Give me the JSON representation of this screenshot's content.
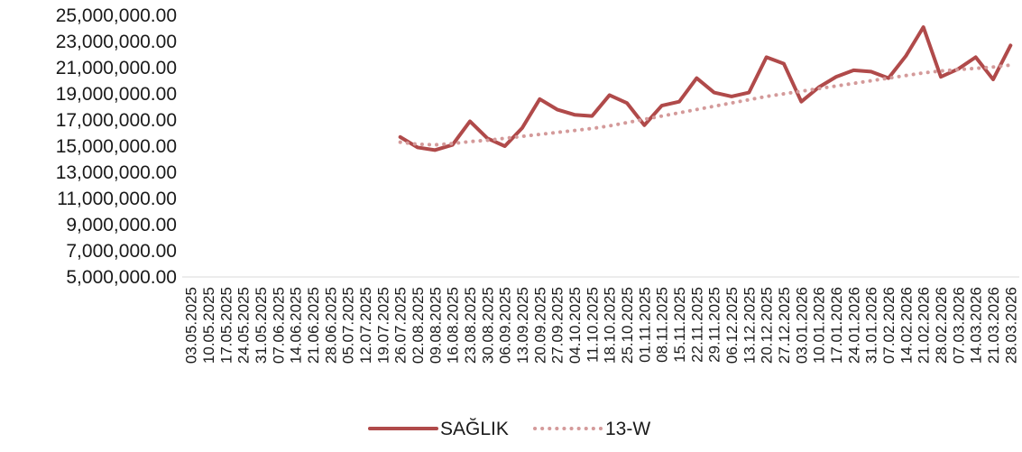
{
  "chart_data": {
    "type": "line",
    "title": "",
    "xlabel": "",
    "ylabel": "",
    "ylim": [
      5000000,
      25000000
    ],
    "yticks": [
      {
        "value": 5000000,
        "label": "5,000,000.00"
      },
      {
        "value": 7000000,
        "label": "7,000,000.00"
      },
      {
        "value": 9000000,
        "label": "9,000,000.00"
      },
      {
        "value": 11000000,
        "label": "11,000,000.00"
      },
      {
        "value": 13000000,
        "label": "13,000,000.00"
      },
      {
        "value": 15000000,
        "label": "15,000,000.00"
      },
      {
        "value": 17000000,
        "label": "17,000,000.00"
      },
      {
        "value": 19000000,
        "label": "19,000,000.00"
      },
      {
        "value": 21000000,
        "label": "21,000,000.00"
      },
      {
        "value": 23000000,
        "label": "23,000,000.00"
      },
      {
        "value": 25000000,
        "label": "25,000,000.00"
      }
    ],
    "grid": false,
    "legend_position": "bottom",
    "categories": [
      "03.05.2025",
      "10.05.2025",
      "17.05.2025",
      "24.05.2025",
      "31.05.2025",
      "07.06.2025",
      "14.06.2025",
      "21.06.2025",
      "28.06.2025",
      "05.07.2025",
      "12.07.2025",
      "19.07.2025",
      "26.07.2025",
      "02.08.2025",
      "09.08.2025",
      "16.08.2025",
      "23.08.2025",
      "30.08.2025",
      "06.09.2025",
      "13.09.2025",
      "20.09.2025",
      "27.09.2025",
      "04.10.2025",
      "11.10.2025",
      "18.10.2025",
      "25.10.2025",
      "01.11.2025",
      "08.11.2025",
      "15.11.2025",
      "22.11.2025",
      "29.11.2025",
      "06.12.2025",
      "13.12.2025",
      "20.12.2025",
      "27.12.2025",
      "03.01.2026",
      "10.01.2026",
      "17.01.2026",
      "24.01.2026",
      "31.01.2026",
      "07.02.2026",
      "14.02.2026",
      "21.02.2026",
      "28.02.2026",
      "07.03.2026",
      "14.03.2026",
      "21.03.2026",
      "28.03.2026"
    ],
    "series": [
      {
        "name": "SAĞLIK",
        "style": "solid",
        "color": "#b04a4a",
        "values": [
          null,
          null,
          null,
          null,
          null,
          null,
          null,
          null,
          null,
          null,
          null,
          null,
          15700000,
          14900000,
          14700000,
          15100000,
          16900000,
          15600000,
          15000000,
          16400000,
          18600000,
          17800000,
          17400000,
          17300000,
          18900000,
          18300000,
          16600000,
          18100000,
          18400000,
          20200000,
          19100000,
          18800000,
          19100000,
          21800000,
          21300000,
          18400000,
          19500000,
          20300000,
          20800000,
          20700000,
          20200000,
          21900000,
          24100000,
          20300000,
          20900000,
          21800000,
          20100000,
          22700000
        ]
      },
      {
        "name": "13-W",
        "style": "dotted",
        "color": "#d49a9a",
        "values": [
          null,
          null,
          null,
          null,
          null,
          null,
          null,
          null,
          null,
          null,
          null,
          null,
          15300000,
          15150000,
          15100000,
          15200000,
          15350000,
          15450000,
          15600000,
          15750000,
          15900000,
          16050000,
          16200000,
          16350000,
          16550000,
          16800000,
          17050000,
          17300000,
          17550000,
          17800000,
          18050000,
          18300000,
          18550000,
          18800000,
          19000000,
          19200000,
          19400000,
          19600000,
          19800000,
          20000000,
          20200000,
          20400000,
          20600000,
          20750000,
          20850000,
          20950000,
          21050000,
          21200000
        ]
      }
    ]
  }
}
